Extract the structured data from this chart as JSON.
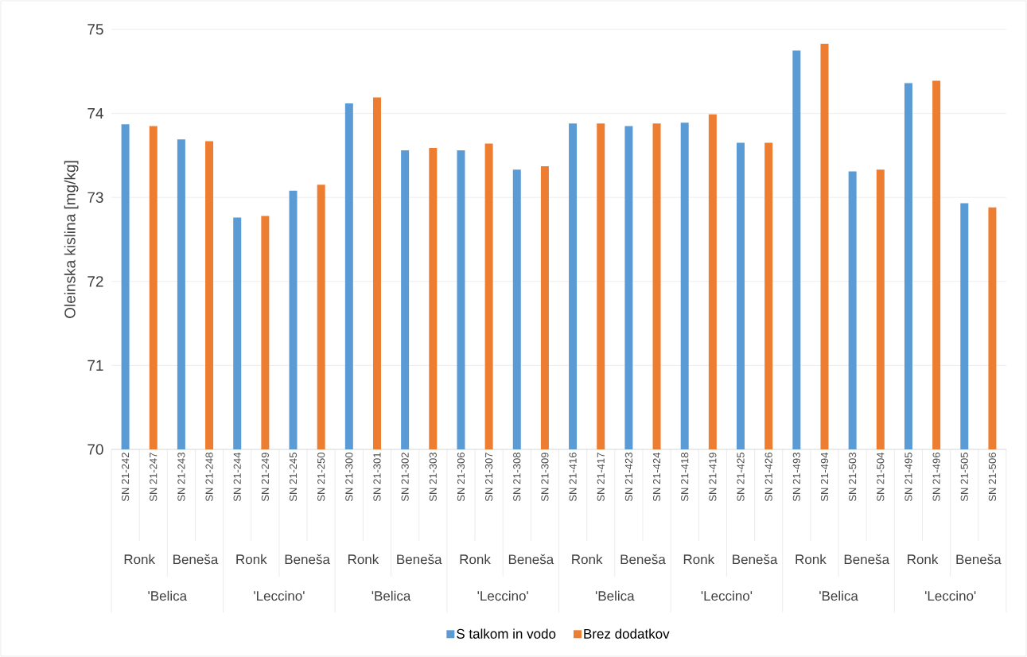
{
  "chart_data": {
    "type": "bar",
    "ylabel": "Oleinska kislina [mg/kg]",
    "categories": [
      "SN 21-242",
      "SN 21-247",
      "SN 21-243",
      "SN 21-248",
      "SN 21-244",
      "SN 21-249",
      "SN 21-245",
      "SN 21-250",
      "SN 21-300",
      "SN 21-301",
      "SN 21-302",
      "SN 21-303",
      "SN 21-306",
      "SN 21-307",
      "SN 21-308",
      "SN 21-309",
      "SN 21-416",
      "SN 21-417",
      "SN 21-423",
      "SN 21-424",
      "SN 21-418",
      "SN 21-419",
      "SN 21-425",
      "SN 21-426",
      "SN 21-493",
      "SN 21-494",
      "SN 21-503",
      "SN 21-504",
      "SN 21-495",
      "SN 21-496",
      "SN 21-505",
      "SN 21-506"
    ],
    "series": [
      {
        "name": "S talkom in vodo",
        "color": "#5b9bd5",
        "values": [
          73.87,
          null,
          73.69,
          null,
          72.76,
          null,
          73.08,
          null,
          74.12,
          null,
          73.56,
          null,
          73.56,
          null,
          73.33,
          null,
          73.88,
          null,
          73.85,
          null,
          73.89,
          null,
          73.65,
          null,
          74.75,
          null,
          73.31,
          null,
          74.36,
          null,
          72.93,
          null
        ]
      },
      {
        "name": "Brez dodatkov",
        "color": "#ed7d31",
        "values": [
          null,
          73.85,
          null,
          73.67,
          null,
          72.78,
          null,
          73.15,
          null,
          74.19,
          null,
          73.59,
          null,
          73.64,
          null,
          73.37,
          null,
          73.88,
          null,
          73.88,
          null,
          73.99,
          null,
          73.65,
          null,
          74.83,
          null,
          73.33,
          null,
          74.39,
          null,
          72.88
        ]
      }
    ],
    "ylim": [
      70,
      75
    ],
    "yticks": [
      70,
      71,
      72,
      73,
      74,
      75
    ],
    "grid": "y",
    "legend": "bottom",
    "annotations": [
      "Ronk",
      "Beneša",
      "Ronk",
      "Beneša",
      "Ronk",
      "Beneša",
      "Ronk",
      "Beneša",
      "Ronk",
      "Beneša",
      "Ronk",
      "Beneša",
      "Ronk",
      "Beneša",
      "Ronk",
      "Beneša",
      "'Belica",
      "'Leccino'",
      "'Belica",
      "'Leccino'",
      "'Belica",
      "'Leccino'",
      "'Belica",
      "'Leccino'"
    ]
  }
}
